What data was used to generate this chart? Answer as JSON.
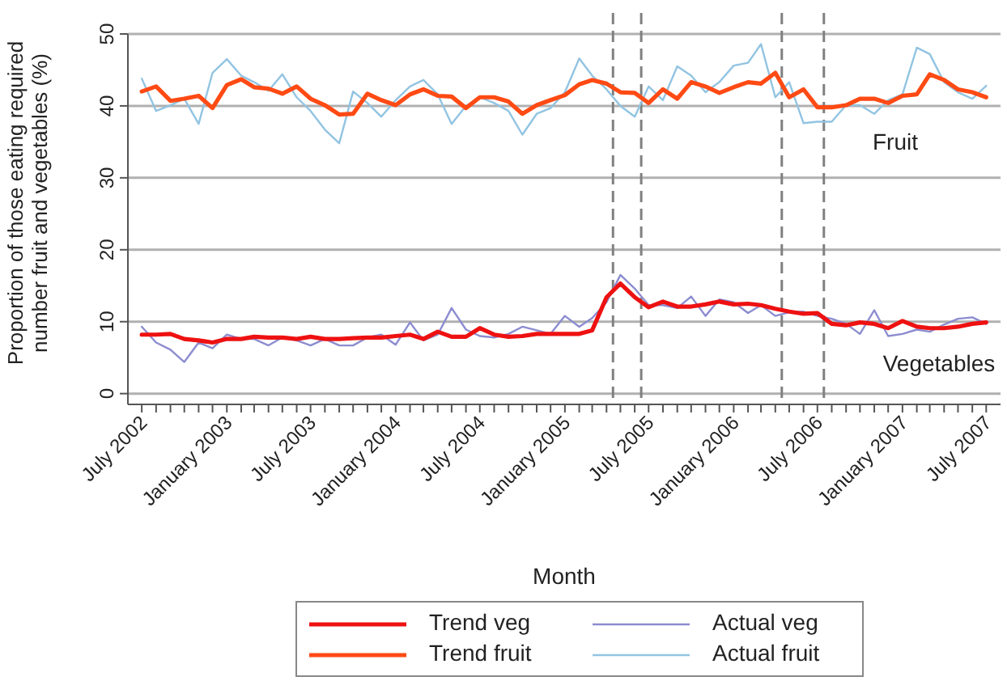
{
  "chart_data": {
    "type": "line",
    "xlabel": "Month",
    "ylabel": "Proportion of those eating required\nnumber fruit and vegetables (%)",
    "x": [
      "2002-07",
      "2002-08",
      "2002-09",
      "2002-10",
      "2002-11",
      "2002-12",
      "2003-01",
      "2003-02",
      "2003-03",
      "2003-04",
      "2003-05",
      "2003-06",
      "2003-07",
      "2003-08",
      "2003-09",
      "2003-10",
      "2003-11",
      "2003-12",
      "2004-01",
      "2004-02",
      "2004-03",
      "2004-04",
      "2004-05",
      "2004-06",
      "2004-07",
      "2004-08",
      "2004-09",
      "2004-10",
      "2004-11",
      "2004-12",
      "2005-01",
      "2005-02",
      "2005-03",
      "2005-04",
      "2005-05",
      "2005-06",
      "2005-07",
      "2005-08",
      "2005-09",
      "2005-10",
      "2005-11",
      "2005-12",
      "2006-01",
      "2006-02",
      "2006-03",
      "2006-04",
      "2006-05",
      "2006-06",
      "2006-07",
      "2006-08",
      "2006-09",
      "2006-10",
      "2006-11",
      "2006-12",
      "2007-01",
      "2007-02",
      "2007-03",
      "2007-04",
      "2007-05",
      "2007-06",
      "2007-07"
    ],
    "series": [
      {
        "name": "Trend veg",
        "color": "#ee1111",
        "values": [
          8.2,
          8.2,
          8.3,
          7.6,
          7.4,
          7.1,
          7.6,
          7.6,
          7.9,
          7.8,
          7.8,
          7.6,
          7.9,
          7.6,
          7.6,
          7.7,
          7.8,
          7.8,
          8.0,
          8.2,
          7.6,
          8.6,
          7.9,
          7.9,
          9.1,
          8.2,
          7.9,
          8.0,
          8.3,
          8.3,
          8.3,
          8.3,
          8.8,
          13.4,
          15.3,
          13.4,
          12.0,
          12.8,
          12.1,
          12.1,
          12.4,
          12.8,
          12.4,
          12.5,
          12.3,
          11.8,
          11.4,
          11.1,
          11.2,
          9.7,
          9.5,
          9.9,
          9.7,
          9.1,
          10.1,
          9.3,
          9.1,
          9.1,
          9.3,
          9.7,
          9.9
        ]
      },
      {
        "name": "Trend fruit",
        "color": "#ff4a14",
        "values": [
          42.0,
          42.7,
          40.7,
          41.0,
          41.4,
          39.7,
          42.9,
          43.7,
          42.6,
          42.4,
          41.7,
          42.7,
          41.0,
          40.1,
          38.8,
          38.9,
          41.7,
          40.8,
          40.1,
          41.6,
          42.3,
          41.4,
          41.3,
          39.7,
          41.2,
          41.2,
          40.6,
          38.9,
          40.1,
          40.8,
          41.5,
          43.0,
          43.6,
          43.1,
          41.9,
          41.8,
          40.4,
          42.3,
          41.0,
          43.3,
          42.7,
          41.8,
          42.6,
          43.3,
          43.1,
          44.6,
          41.2,
          42.3,
          39.8,
          39.8,
          40.1,
          41.0,
          41.0,
          40.4,
          41.4,
          41.6,
          44.4,
          43.6,
          42.3,
          41.9,
          41.2
        ]
      },
      {
        "name": "Actual veg",
        "color": "#8c8cd0",
        "values": [
          9.3,
          7.1,
          6.1,
          4.4,
          7.1,
          6.3,
          8.2,
          7.6,
          7.6,
          6.7,
          7.8,
          7.4,
          6.7,
          7.6,
          6.7,
          6.7,
          7.8,
          8.2,
          6.8,
          9.9,
          7.4,
          8.2,
          11.9,
          8.9,
          8.0,
          7.8,
          8.3,
          9.3,
          8.8,
          8.3,
          10.8,
          9.3,
          10.5,
          12.7,
          16.5,
          14.6,
          12.3,
          12.3,
          11.9,
          13.5,
          10.8,
          13.1,
          12.7,
          11.2,
          12.3,
          10.8,
          11.3,
          11.4,
          10.8,
          10.4,
          9.7,
          8.3,
          11.6,
          8.0,
          8.3,
          8.9,
          8.6,
          9.6,
          10.4,
          10.6,
          9.7
        ]
      },
      {
        "name": "Actual fruit",
        "color": "#92c4e2",
        "values": [
          43.8,
          39.3,
          40.1,
          41.0,
          37.5,
          44.6,
          46.5,
          44.2,
          43.3,
          42.1,
          44.4,
          41.2,
          39.3,
          36.7,
          34.8,
          42.0,
          40.4,
          38.5,
          40.8,
          42.7,
          43.6,
          41.6,
          37.5,
          40.0,
          41.2,
          40.4,
          39.3,
          36.0,
          38.9,
          39.7,
          41.9,
          46.6,
          44.2,
          42.3,
          40.0,
          38.5,
          42.7,
          40.8,
          45.5,
          44.2,
          41.9,
          43.3,
          45.6,
          46.0,
          48.6,
          41.2,
          43.3,
          37.6,
          37.8,
          37.8,
          40.1,
          40.1,
          38.9,
          40.8,
          41.6,
          48.1,
          47.2,
          43.3,
          41.9,
          41.0,
          42.8
        ]
      }
    ],
    "xlim": [
      "2002-06",
      "2007-08"
    ],
    "xticks": [
      {
        "value": "2002-07",
        "label": "July 2002"
      },
      {
        "value": "2002-08",
        "label": null
      },
      {
        "value": "2002-09",
        "label": null
      },
      {
        "value": "2002-10",
        "label": null
      },
      {
        "value": "2002-11",
        "label": null
      },
      {
        "value": "2002-12",
        "label": null
      },
      {
        "value": "2003-01",
        "label": "January 2003"
      },
      {
        "value": "2003-02",
        "label": null
      },
      {
        "value": "2003-03",
        "label": null
      },
      {
        "value": "2003-04",
        "label": null
      },
      {
        "value": "2003-05",
        "label": null
      },
      {
        "value": "2003-06",
        "label": null
      },
      {
        "value": "2003-07",
        "label": "July 2003"
      },
      {
        "value": "2003-08",
        "label": null
      },
      {
        "value": "2003-09",
        "label": null
      },
      {
        "value": "2003-10",
        "label": null
      },
      {
        "value": "2003-11",
        "label": null
      },
      {
        "value": "2003-12",
        "label": null
      },
      {
        "value": "2004-01",
        "label": "January 2004"
      },
      {
        "value": "2004-02",
        "label": null
      },
      {
        "value": "2004-03",
        "label": null
      },
      {
        "value": "2004-04",
        "label": null
      },
      {
        "value": "2004-05",
        "label": null
      },
      {
        "value": "2004-06",
        "label": null
      },
      {
        "value": "2004-07",
        "label": "July 2004"
      },
      {
        "value": "2004-08",
        "label": null
      },
      {
        "value": "2004-09",
        "label": null
      },
      {
        "value": "2004-10",
        "label": null
      },
      {
        "value": "2004-11",
        "label": null
      },
      {
        "value": "2004-12",
        "label": null
      },
      {
        "value": "2005-01",
        "label": "January 2005"
      },
      {
        "value": "2005-02",
        "label": null
      },
      {
        "value": "2005-03",
        "label": null
      },
      {
        "value": "2005-04",
        "label": null
      },
      {
        "value": "2005-05",
        "label": null
      },
      {
        "value": "2005-06",
        "label": null
      },
      {
        "value": "2005-07",
        "label": "July 2005"
      },
      {
        "value": "2005-08",
        "label": null
      },
      {
        "value": "2005-09",
        "label": null
      },
      {
        "value": "2005-10",
        "label": null
      },
      {
        "value": "2005-11",
        "label": null
      },
      {
        "value": "2005-12",
        "label": null
      },
      {
        "value": "2006-01",
        "label": "January 2006"
      },
      {
        "value": "2006-02",
        "label": null
      },
      {
        "value": "2006-03",
        "label": null
      },
      {
        "value": "2006-04",
        "label": null
      },
      {
        "value": "2006-05",
        "label": null
      },
      {
        "value": "2006-06",
        "label": null
      },
      {
        "value": "2006-07",
        "label": "July 2006"
      },
      {
        "value": "2006-08",
        "label": null
      },
      {
        "value": "2006-09",
        "label": null
      },
      {
        "value": "2006-10",
        "label": null
      },
      {
        "value": "2006-11",
        "label": null
      },
      {
        "value": "2006-12",
        "label": null
      },
      {
        "value": "2007-01",
        "label": "January 2007"
      },
      {
        "value": "2007-02",
        "label": null
      },
      {
        "value": "2007-03",
        "label": null
      },
      {
        "value": "2007-04",
        "label": null
      },
      {
        "value": "2007-05",
        "label": null
      },
      {
        "value": "2007-06",
        "label": null
      },
      {
        "value": "2007-07",
        "label": "July 2007"
      }
    ],
    "ylim": [
      -1.5,
      50
    ],
    "yticks": [
      0,
      10,
      20,
      30,
      40,
      50
    ],
    "grid": "y",
    "legend": "bottom",
    "marker": "none",
    "line_style": "solid",
    "ref_lines": [
      {
        "axis": "x",
        "value": "2005-04-15",
        "color": "#808080",
        "line_style": "dashed"
      },
      {
        "axis": "x",
        "value": "2005-06-15",
        "color": "#808080",
        "line_style": "dashed"
      },
      {
        "axis": "x",
        "value": "2006-04-15",
        "color": "#808080",
        "line_style": "dashed"
      },
      {
        "axis": "x",
        "value": "2006-07-15",
        "color": "#808080",
        "line_style": "dashed"
      }
    ],
    "annotations": [
      "Fruit",
      "Vegetables"
    ]
  }
}
